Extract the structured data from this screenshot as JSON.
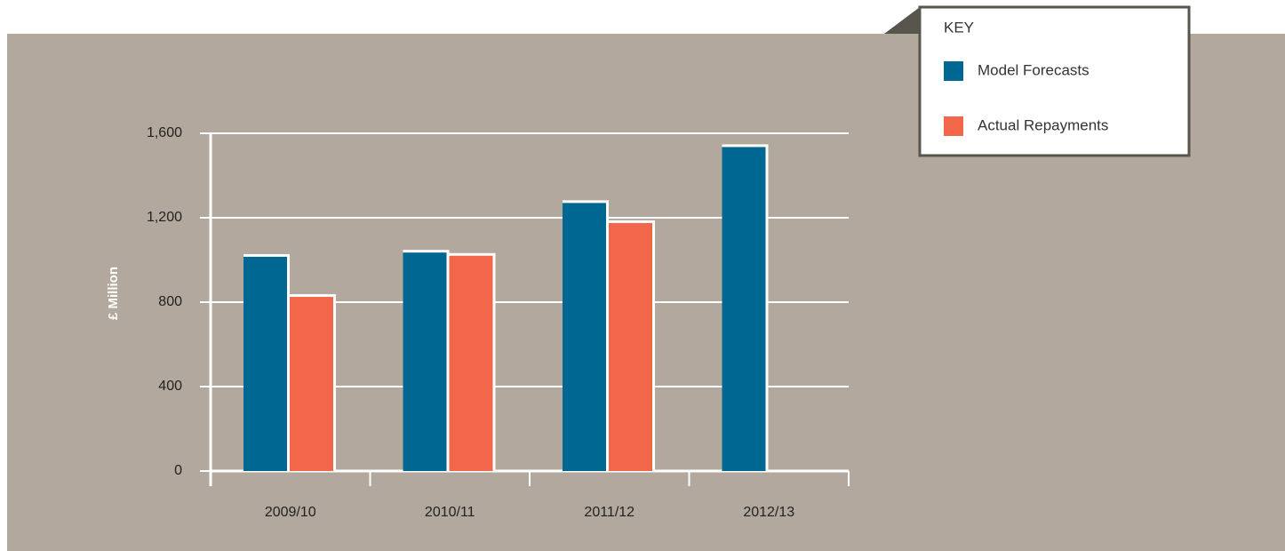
{
  "chart_data": {
    "type": "bar",
    "categories": [
      "2009/10",
      "2010/11",
      "2011/12",
      "2012/13"
    ],
    "series": [
      {
        "name": "Model Forecasts",
        "color": "#006792",
        "values": [
          1015,
          1035,
          1270,
          1535
        ]
      },
      {
        "name": "Actual Repayments",
        "color": "#f26649",
        "values": [
          825,
          1020,
          1175,
          null
        ]
      }
    ],
    "ylabel": "£ Million",
    "legend_title": "KEY",
    "legend": "top-right",
    "ylim": [
      0,
      1600
    ],
    "yticks": [
      0,
      400,
      800,
      {
        "value": 1200,
        "label": "1,200"
      },
      {
        "value": 1600,
        "label": "1,600"
      }
    ],
    "grid": true
  }
}
